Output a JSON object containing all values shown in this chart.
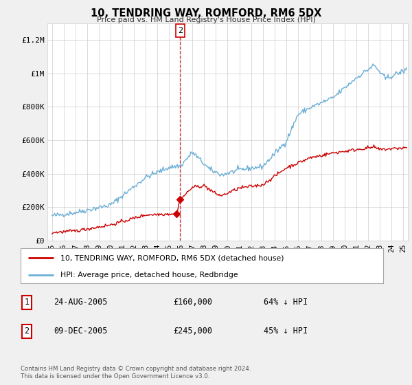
{
  "title": "10, TENDRING WAY, ROMFORD, RM6 5DX",
  "subtitle": "Price paid vs. HM Land Registry's House Price Index (HPI)",
  "ylabel_ticks": [
    "£0",
    "£200K",
    "£400K",
    "£600K",
    "£800K",
    "£1M",
    "£1.2M"
  ],
  "ytick_vals": [
    0,
    200000,
    400000,
    600000,
    800000,
    1000000,
    1200000
  ],
  "ylim": [
    0,
    1300000
  ],
  "xlim_start": 1994.6,
  "xlim_end": 2025.4,
  "legend_line1": "10, TENDRING WAY, ROMFORD, RM6 5DX (detached house)",
  "legend_line2": "HPI: Average price, detached house, Redbridge",
  "hpi_color": "#6baed6",
  "price_color": "#cc0000",
  "transaction1_date": "24-AUG-2005",
  "transaction1_price": "£160,000",
  "transaction1_hpi": "64% ↓ HPI",
  "transaction1_year": 2005.65,
  "transaction1_value": 160000,
  "transaction2_date": "09-DEC-2005",
  "transaction2_price": "£245,000",
  "transaction2_hpi": "45% ↓ HPI",
  "transaction2_year": 2005.94,
  "transaction2_value": 245000,
  "vline_year": 2005.94,
  "footer": "Contains HM Land Registry data © Crown copyright and database right 2024.\nThis data is licensed under the Open Government Licence v3.0.",
  "background_color": "#f0f0f0",
  "plot_background": "#ffffff",
  "vline_color": "#cc0000",
  "label2_box_color": "#cc0000"
}
